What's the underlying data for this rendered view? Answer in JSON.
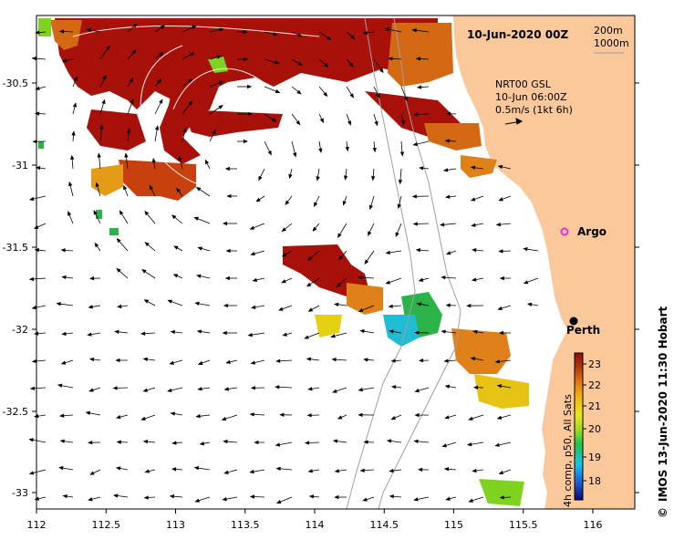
{
  "title": "10-Jun-2020 00Z",
  "contour_legend": {
    "line1": "200m",
    "line2": "1000m"
  },
  "current_info": {
    "line1": "NRT00 GSL",
    "line2": "10-Jun 06:00Z",
    "line3": "0.5m/s (1kt 6h)"
  },
  "places": {
    "perth": "Perth",
    "argo": "Argo"
  },
  "colorbar": {
    "label": "4h comp, p50, All Sats",
    "ticks": [
      "23",
      "22",
      "21",
      "20",
      "19",
      "18"
    ],
    "colors": [
      "#0a0a78",
      "#1e5fd6",
      "#17c3e6",
      "#22c24a",
      "#9fdc1e",
      "#e8e81a",
      "#f0b514",
      "#e07a14",
      "#b23a0a",
      "#8c0a0a"
    ]
  },
  "credit": "IMOS 13-Jun-2020 11:30 Hobart",
  "copyright": "©",
  "axes": {
    "x_ticks": [
      "112",
      "112.5",
      "113",
      "113.5",
      "114",
      "114.5",
      "115",
      "115.5",
      "116"
    ],
    "y_ticks": [
      "-30.5",
      "-31",
      "-31.5",
      "-32",
      "-32.5",
      "-33"
    ]
  },
  "colors": {
    "land": "#fac89a",
    "ocean": "#ffffff",
    "argo_marker": "#e030e0"
  }
}
